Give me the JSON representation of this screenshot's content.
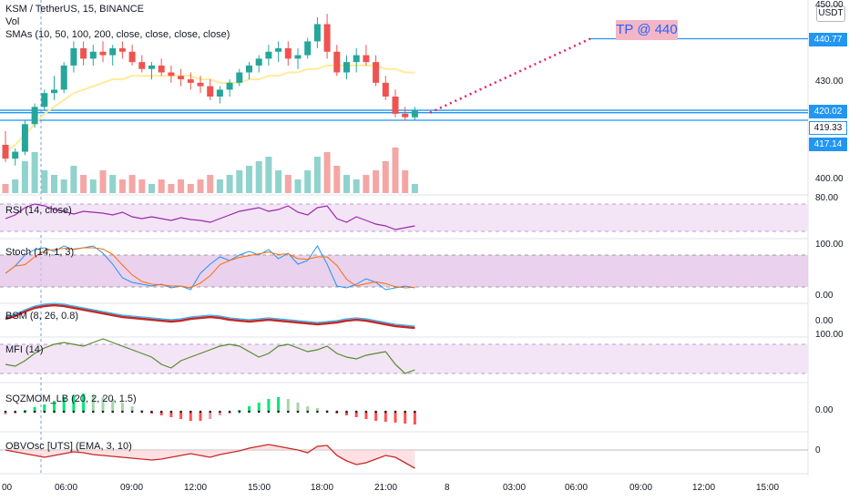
{
  "header": {
    "symbol_line": "KSM / TetherUS, 15, BINANCE",
    "vol_label": "Vol",
    "sma_label": "SMAs (10, 50, 100, 200, close, close, close, close)",
    "currency_button": "USDT"
  },
  "annotation": {
    "tp_text": "TP @ 440"
  },
  "price_axis": {
    "ticks": [
      "450.00",
      "430.00",
      "400.00"
    ],
    "tags": [
      {
        "value": "440.77",
        "style": "solid"
      },
      {
        "value": "420.02",
        "style": "solid"
      },
      {
        "value": "419.33",
        "style": "outline"
      },
      {
        "value": "417.14",
        "style": "solid"
      }
    ]
  },
  "panels": {
    "rsi": {
      "label": "RSI (14, close)",
      "axis": "80.00"
    },
    "stoch": {
      "label": "Stoch (14, 1, 3)",
      "axis_top": "100.00",
      "axis_bottom": "0.00"
    },
    "bsm": {
      "label": "BSM (8, 26, 0.8)",
      "axis": "0.00"
    },
    "mfi": {
      "label": "MFI (14)",
      "axis": "100.00"
    },
    "sqzmom": {
      "label": "SQZMOM_LB (20, 2, 20, 1.5)",
      "axis": "0.00"
    },
    "obvosc": {
      "label": "OBVOsc [UTS] (EMA, 3, 10)",
      "axis": "0"
    }
  },
  "time_axis": [
    "00",
    "06:00",
    "09:00",
    "12:00",
    "15:00",
    "18:00",
    "21:00",
    "8",
    "03:00",
    "06:00",
    "09:00",
    "12:00",
    "15:00"
  ],
  "colors": {
    "up": "#26a69a",
    "down": "#ef5350",
    "sma": "#ffeb99",
    "rsi": "#9c27b0",
    "band_fill": "#e1bee7",
    "level_line": "#2196f3",
    "target": "#e91e63"
  },
  "chart_data": {
    "type": "candlestick",
    "title": "KSM / TetherUS, 15, BINANCE",
    "ylim": [
      396,
      452
    ],
    "candles": [
      [
        410,
        414,
        405,
        406
      ],
      [
        406,
        409,
        404,
        408
      ],
      [
        408,
        417,
        407,
        416
      ],
      [
        416,
        422,
        415,
        421
      ],
      [
        421,
        426,
        420,
        425
      ],
      [
        425,
        430,
        423,
        426
      ],
      [
        426,
        434,
        425,
        433
      ],
      [
        433,
        440,
        431,
        438
      ],
      [
        438,
        440,
        433,
        435
      ],
      [
        435,
        439,
        433,
        437
      ],
      [
        437,
        440,
        434,
        436
      ],
      [
        436,
        439,
        433,
        438
      ],
      [
        438,
        440,
        435,
        437
      ],
      [
        437,
        439,
        433,
        434
      ],
      [
        434,
        436,
        431,
        432
      ],
      [
        432,
        434,
        429,
        433
      ],
      [
        433,
        435,
        430,
        431
      ],
      [
        431,
        433,
        428,
        430
      ],
      [
        430,
        432,
        427,
        429
      ],
      [
        429,
        431,
        426,
        428
      ],
      [
        428,
        430,
        425,
        427
      ],
      [
        427,
        429,
        423,
        424
      ],
      [
        424,
        427,
        422,
        426
      ],
      [
        426,
        429,
        424,
        428
      ],
      [
        428,
        432,
        427,
        431
      ],
      [
        431,
        434,
        429,
        433
      ],
      [
        433,
        436,
        431,
        435
      ],
      [
        435,
        439,
        433,
        437
      ],
      [
        437,
        440,
        434,
        438
      ],
      [
        438,
        440,
        433,
        435
      ],
      [
        435,
        438,
        432,
        436
      ],
      [
        436,
        441,
        435,
        440
      ],
      [
        440,
        447,
        438,
        445
      ],
      [
        445,
        448,
        435,
        437
      ],
      [
        437,
        439,
        430,
        431
      ],
      [
        431,
        436,
        429,
        434
      ],
      [
        434,
        438,
        431,
        436
      ],
      [
        436,
        439,
        433,
        434
      ],
      [
        434,
        436,
        427,
        428
      ],
      [
        428,
        430,
        423,
        424
      ],
      [
        424,
        426,
        418,
        419
      ],
      [
        419,
        421,
        417,
        418
      ],
      [
        418,
        421,
        417,
        420
      ]
    ],
    "volume": [
      2,
      3,
      7,
      9,
      5,
      4,
      3,
      6,
      4,
      3,
      5,
      4,
      3,
      4,
      3,
      2,
      3,
      2,
      3,
      2,
      3,
      4,
      3,
      4,
      5,
      6,
      7,
      8,
      5,
      4,
      3,
      5,
      8,
      9,
      6,
      4,
      3,
      4,
      5,
      7,
      10,
      5,
      2
    ],
    "sma50": [
      408,
      410,
      413,
      416,
      419,
      421,
      423,
      425,
      426,
      427,
      428,
      429,
      429,
      430,
      430,
      430,
      430,
      430,
      430,
      430,
      429,
      429,
      428,
      428,
      428,
      429,
      429,
      430,
      430,
      431,
      431,
      432,
      432,
      433,
      433,
      433,
      433,
      433,
      433,
      432,
      432,
      431,
      431
    ],
    "levels": [
      420.02,
      419.33,
      417.14,
      440.77
    ],
    "target_line": {
      "from_index": 43,
      "from_value": 419.33,
      "to_value": 440.77,
      "label": "TP @ 440"
    }
  }
}
